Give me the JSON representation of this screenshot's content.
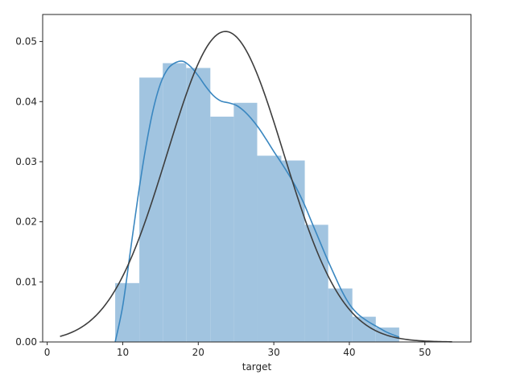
{
  "chart_data": {
    "type": "bar",
    "title": "",
    "xlabel": "target",
    "ylabel": "",
    "xlim": [
      -0.6,
      56.1
    ],
    "ylim": [
      0.0,
      0.0545
    ],
    "grid": false,
    "x_ticks": [
      0,
      10,
      20,
      30,
      40,
      50
    ],
    "x_tick_labels": [
      "0",
      "10",
      "20",
      "30",
      "40",
      "50"
    ],
    "y_ticks": [
      0.0,
      0.01,
      0.02,
      0.03,
      0.04,
      0.05
    ],
    "y_tick_labels": [
      "0.00",
      "0.01",
      "0.02",
      "0.03",
      "0.04",
      "0.05"
    ],
    "histogram": {
      "color": "#a1c4e0",
      "bins": [
        {
          "x0": 9.0,
          "x1": 12.2,
          "density": 0.0098
        },
        {
          "x0": 12.2,
          "x1": 15.3,
          "density": 0.044
        },
        {
          "x0": 15.3,
          "x1": 18.4,
          "density": 0.0464
        },
        {
          "x0": 18.4,
          "x1": 21.6,
          "density": 0.0456
        },
        {
          "x0": 21.6,
          "x1": 24.7,
          "density": 0.0375
        },
        {
          "x0": 24.7,
          "x1": 27.8,
          "density": 0.0398
        },
        {
          "x0": 27.8,
          "x1": 31.0,
          "density": 0.031
        },
        {
          "x0": 31.0,
          "x1": 34.1,
          "density": 0.0302
        },
        {
          "x0": 34.1,
          "x1": 37.2,
          "density": 0.0195
        },
        {
          "x0": 37.2,
          "x1": 40.4,
          "density": 0.0089
        },
        {
          "x0": 40.4,
          "x1": 43.5,
          "density": 0.0042
        },
        {
          "x0": 43.5,
          "x1": 46.6,
          "density": 0.0024
        }
      ]
    },
    "kde": {
      "color": "#3a87c0",
      "x": [
        9.0,
        10.0,
        11.0,
        12.0,
        13.0,
        14.0,
        15.0,
        16.0,
        17.0,
        18.0,
        19.0,
        20.0,
        21.0,
        22.0,
        23.0,
        24.0,
        25.0,
        26.0,
        27.0,
        28.0,
        29.0,
        30.0,
        31.0,
        32.0,
        33.0,
        34.0,
        35.0,
        36.0,
        37.0,
        38.0,
        39.0,
        40.0,
        41.0,
        42.0,
        43.0,
        44.0,
        45.0,
        46.6
      ],
      "y": [
        0.0,
        0.006,
        0.015,
        0.024,
        0.032,
        0.0385,
        0.043,
        0.0455,
        0.0465,
        0.0467,
        0.0458,
        0.0443,
        0.0425,
        0.041,
        0.0401,
        0.0398,
        0.0394,
        0.0385,
        0.0372,
        0.0356,
        0.0337,
        0.0317,
        0.0298,
        0.0278,
        0.0256,
        0.023,
        0.02,
        0.017,
        0.014,
        0.0112,
        0.0085,
        0.0063,
        0.0048,
        0.0038,
        0.003,
        0.0023,
        0.0016,
        0.0008
      ]
    },
    "normal_fit": {
      "color": "#3d3d3d",
      "mean": 23.6,
      "std": 7.72,
      "x_range": [
        1.7,
        53.6
      ]
    }
  }
}
